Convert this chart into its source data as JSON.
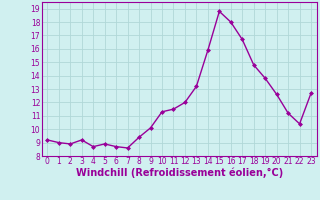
{
  "x": [
    0,
    1,
    2,
    3,
    4,
    5,
    6,
    7,
    8,
    9,
    10,
    11,
    12,
    13,
    14,
    15,
    16,
    17,
    18,
    19,
    20,
    21,
    22,
    23
  ],
  "y": [
    9.2,
    9.0,
    8.9,
    9.2,
    8.7,
    8.9,
    8.7,
    8.6,
    9.4,
    10.1,
    11.3,
    11.5,
    12.0,
    13.2,
    15.9,
    18.8,
    18.0,
    16.7,
    14.8,
    13.8,
    12.6,
    11.2,
    10.4,
    12.7
  ],
  "line_color": "#990099",
  "marker": "D",
  "marker_size": 2.0,
  "bg_color": "#d0f0f0",
  "grid_color": "#b0d8d8",
  "xlabel": "Windchill (Refroidissement éolien,°C)",
  "xlim": [
    -0.5,
    23.5
  ],
  "ylim": [
    8.0,
    19.5
  ],
  "yticks": [
    8,
    9,
    10,
    11,
    12,
    13,
    14,
    15,
    16,
    17,
    18,
    19
  ],
  "xticks": [
    0,
    1,
    2,
    3,
    4,
    5,
    6,
    7,
    8,
    9,
    10,
    11,
    12,
    13,
    14,
    15,
    16,
    17,
    18,
    19,
    20,
    21,
    22,
    23
  ],
  "tick_color": "#990099",
  "tick_label_size": 5.5,
  "xlabel_size": 7.0,
  "line_width": 1.0,
  "spine_color": "#990099"
}
